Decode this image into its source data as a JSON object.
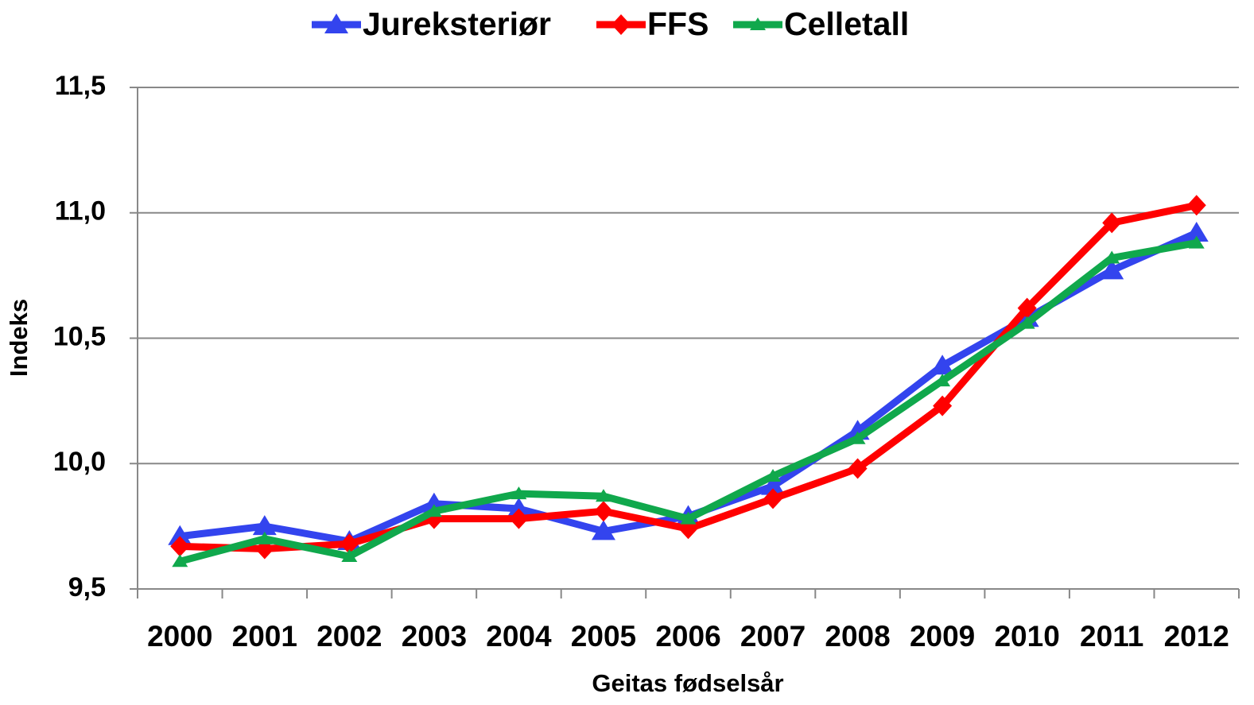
{
  "chart_data": {
    "type": "line",
    "x_label": "Geitas fødselsår",
    "y_label": "Indeks",
    "categories": [
      "2000",
      "2001",
      "2002",
      "2003",
      "2004",
      "2005",
      "2006",
      "2007",
      "2008",
      "2009",
      "2010",
      "2011",
      "2012"
    ],
    "series": [
      {
        "name": "Jureksteriør",
        "color": "#3344ee",
        "marker": "triangle",
        "values": [
          9.71,
          9.75,
          9.69,
          9.84,
          9.82,
          9.73,
          9.79,
          9.91,
          10.13,
          10.39,
          10.58,
          10.77,
          10.92
        ]
      },
      {
        "name": "FFS",
        "color": "#ff0000",
        "marker": "diamond",
        "values": [
          9.67,
          9.66,
          9.68,
          9.78,
          9.78,
          9.81,
          9.74,
          9.86,
          9.98,
          10.23,
          10.62,
          10.96,
          11.03
        ]
      },
      {
        "name": "Celletall",
        "color": "#10a84c",
        "marker": "small-triangle",
        "values": [
          9.61,
          9.7,
          9.63,
          9.81,
          9.88,
          9.87,
          9.78,
          9.95,
          10.1,
          10.33,
          10.56,
          10.82,
          10.88
        ]
      }
    ],
    "ylim": [
      9.5,
      11.5
    ],
    "yticks": [
      {
        "value": 9.5,
        "label": "9,5"
      },
      {
        "value": 10.0,
        "label": "10,0"
      },
      {
        "value": 10.5,
        "label": "10,5"
      },
      {
        "value": 11.0,
        "label": "11,0"
      },
      {
        "value": 11.5,
        "label": "11,5"
      }
    ],
    "grid": true,
    "legend": "top"
  }
}
